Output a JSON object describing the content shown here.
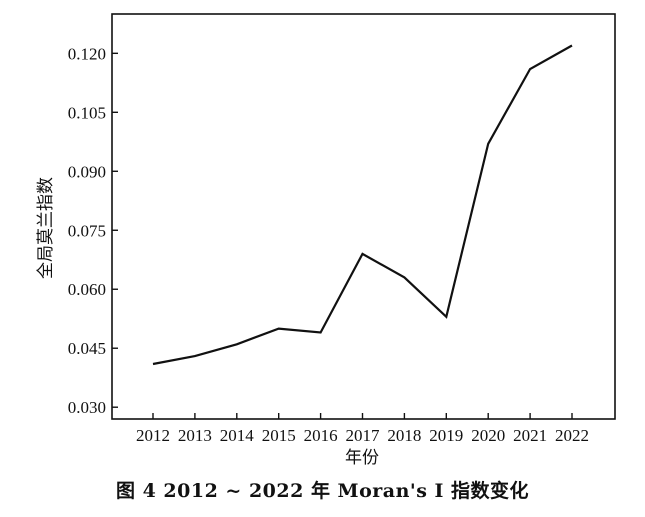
{
  "caption": "图 4    2012 ~ 2022 年 Moran's I 指数变化",
  "chart_data": {
    "type": "line",
    "xlabel": "年份",
    "ylabel": "全局莫兰指数",
    "x": [
      "2012",
      "2013",
      "2014",
      "2015",
      "2016",
      "2017",
      "2018",
      "2019",
      "2020",
      "2021",
      "2022"
    ],
    "series": [
      {
        "values": [
          0.041,
          0.043,
          0.046,
          0.05,
          0.049,
          0.069,
          0.063,
          0.053,
          0.097,
          0.116,
          0.122
        ]
      }
    ],
    "yticks": [
      "0.030",
      "0.045",
      "0.060",
      "0.075",
      "0.090",
      "0.105",
      "0.120"
    ],
    "ylim": [
      0.027,
      0.13
    ],
    "grid": false,
    "legend": "none",
    "line_color": "#111111"
  }
}
